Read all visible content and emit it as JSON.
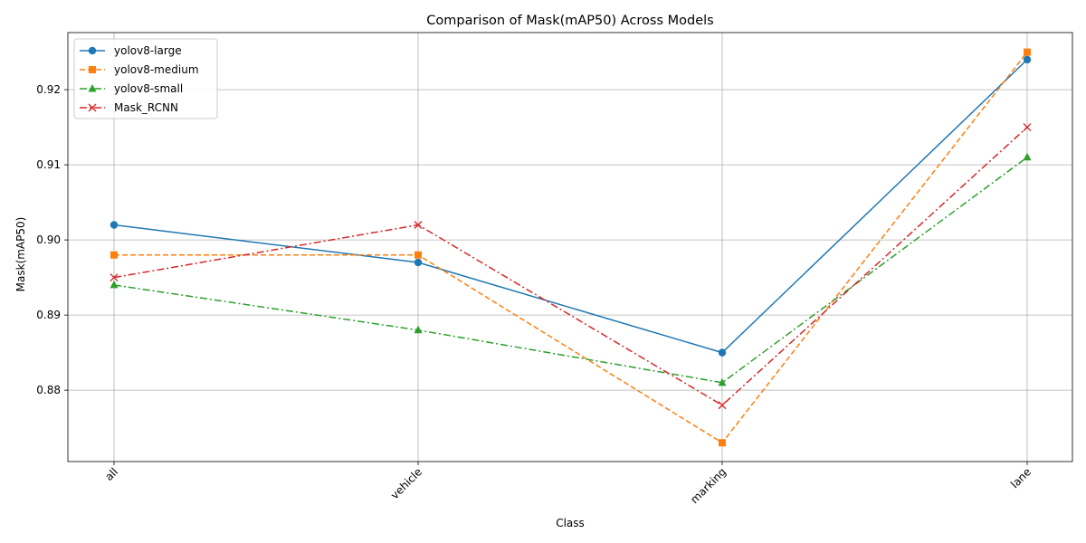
{
  "chart_data": {
    "type": "line",
    "title": "Comparison of Mask(mAP50) Across Models",
    "xlabel": "Class",
    "ylabel": "Mask(mAP50)",
    "categories": [
      "all",
      "vehicle",
      "marking",
      "lane"
    ],
    "ylim": [
      0.8705,
      0.9276
    ],
    "yticks": [
      "0.88",
      "0.89",
      "0.90",
      "0.91",
      "0.92"
    ],
    "grid": true,
    "legend_position": "top-left",
    "series": [
      {
        "name": "yolov8-large",
        "values": [
          0.902,
          0.897,
          0.885,
          0.924
        ],
        "color": "#1f77b4",
        "marker": "circle",
        "linestyle": "solid"
      },
      {
        "name": "yolov8-medium",
        "values": [
          0.898,
          0.898,
          0.873,
          0.925
        ],
        "color": "#ff7f0e",
        "marker": "square",
        "linestyle": "dashed"
      },
      {
        "name": "yolov8-small",
        "values": [
          0.894,
          0.888,
          0.881,
          0.911
        ],
        "color": "#2ca02c",
        "marker": "triangle",
        "linestyle": "dashdot"
      },
      {
        "name": "Mask_RCNN",
        "values": [
          0.895,
          0.902,
          0.878,
          0.915
        ],
        "color": "#d62728",
        "marker": "x",
        "linestyle": "dashdot"
      }
    ]
  }
}
